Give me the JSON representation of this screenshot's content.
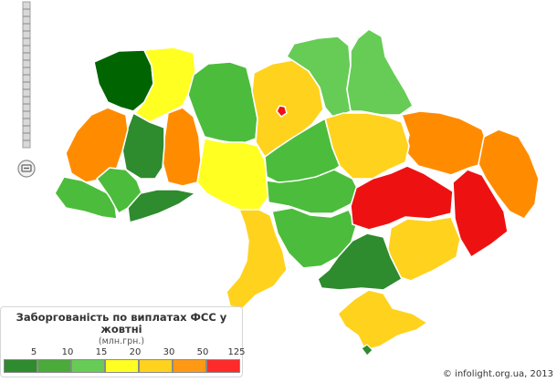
{
  "legend": {
    "title": "Заборгованість по виплатах ФСС у жовтні",
    "units": "(млн.грн.)",
    "ticks": [
      "5",
      "10",
      "15",
      "20",
      "30",
      "50",
      "125"
    ],
    "colors": [
      "#2e8b2e",
      "#4aaa3a",
      "#66cc55",
      "#ffff22",
      "#ffd21e",
      "#ff9914",
      "#ff2a2a"
    ]
  },
  "credit": "© infolight.org.ua, 2013",
  "map_colors": {
    "dark_green": "#006400",
    "mid_green": "#2e8b2e",
    "green": "#4cbc3c",
    "light_green": "#66cc55",
    "yellow": "#ffff22",
    "gold": "#ffd21e",
    "orange": "#ff8c00",
    "red": "#ee1111"
  },
  "map_controls": {
    "zoom_slider_icon": "zoom-slider-icon",
    "zoom_out_icon": "minus-icon"
  }
}
